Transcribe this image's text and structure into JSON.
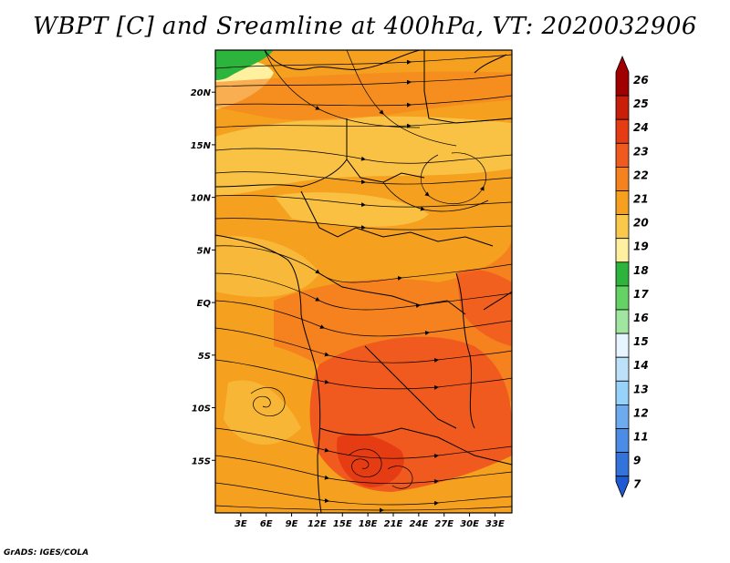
{
  "title": "WBPT [C] and Sreamline at 400hPa, VT: 2020032906",
  "footer": "GrADS: IGES/COLA",
  "map": {
    "lon_range": [
      0,
      35
    ],
    "lat_range": [
      -20,
      24
    ],
    "lon_ticks": [
      {
        "value": 3,
        "label": "3E"
      },
      {
        "value": 6,
        "label": "6E"
      },
      {
        "value": 9,
        "label": "9E"
      },
      {
        "value": 12,
        "label": "12E"
      },
      {
        "value": 15,
        "label": "15E"
      },
      {
        "value": 18,
        "label": "18E"
      },
      {
        "value": 21,
        "label": "21E"
      },
      {
        "value": 24,
        "label": "24E"
      },
      {
        "value": 27,
        "label": "27E"
      },
      {
        "value": 30,
        "label": "30E"
      },
      {
        "value": 33,
        "label": "33E"
      }
    ],
    "lat_ticks": [
      {
        "value": 20,
        "label": "20N"
      },
      {
        "value": 15,
        "label": "15N"
      },
      {
        "value": 10,
        "label": "10N"
      },
      {
        "value": 5,
        "label": "5N"
      },
      {
        "value": 0,
        "label": "EQ"
      },
      {
        "value": -5,
        "label": "5S"
      },
      {
        "value": -10,
        "label": "10S"
      },
      {
        "value": -15,
        "label": "15S"
      }
    ]
  },
  "colorbar": {
    "levels": [
      {
        "label": "26",
        "color": "#a00000"
      },
      {
        "label": "25",
        "color": "#c81e0a"
      },
      {
        "label": "24",
        "color": "#e63c14"
      },
      {
        "label": "23",
        "color": "#f05a1e"
      },
      {
        "label": "22",
        "color": "#f5821e"
      },
      {
        "label": "21",
        "color": "#f5a01e"
      },
      {
        "label": "20",
        "color": "#fac84b"
      },
      {
        "label": "19",
        "color": "#fff0a0"
      },
      {
        "label": "18",
        "color": "#2db43c"
      },
      {
        "label": "17",
        "color": "#64d264"
      },
      {
        "label": "16",
        "color": "#a0e6a0"
      },
      {
        "label": "15",
        "color": "#e6f5ff"
      },
      {
        "label": "14",
        "color": "#bee1fa"
      },
      {
        "label": "13",
        "color": "#96d2fa"
      },
      {
        "label": "12",
        "color": "#6eaaf0"
      },
      {
        "label": "11",
        "color": "#4b8ce6"
      },
      {
        "label": "9",
        "color": "#3273dc"
      },
      {
        "label": "7",
        "color": "#1e5ad2"
      }
    ]
  }
}
